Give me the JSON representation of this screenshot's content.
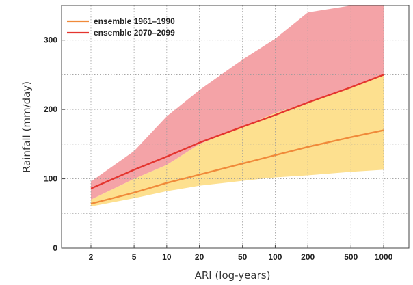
{
  "chart_data": {
    "type": "area",
    "x_scale": "log",
    "x": [
      2,
      5,
      10,
      20,
      50,
      100,
      200,
      500,
      1000
    ],
    "x_ticks": [
      "2",
      "5",
      "10",
      "20",
      "50",
      "100",
      "200",
      "500",
      "1000"
    ],
    "xlabel": "ARI (log-years)",
    "ylabel": "Rainfall (mm/day)",
    "ylim": [
      0,
      350
    ],
    "y_ticks": [
      0,
      100,
      200,
      300
    ],
    "grid": true,
    "legend_position": "top-left",
    "series": [
      {
        "name": "ensemble 1961–1990",
        "color": "#f08a3a",
        "band_color": "#fde08f",
        "values": [
          64,
          80,
          94,
          106,
          122,
          134,
          146,
          160,
          170
        ],
        "band_low": [
          60,
          72,
          82,
          90,
          97,
          102,
          105,
          110,
          113
        ],
        "band_high": [
          70,
          100,
          120,
          150,
          175,
          195,
          210,
          232,
          250
        ]
      },
      {
        "name": "ensemble 2070–2099",
        "color": "#e4352f",
        "band_color": "#f4a3a7",
        "values": [
          86,
          113,
          132,
          152,
          175,
          192,
          210,
          232,
          250
        ],
        "band_low": [
          70,
          100,
          120,
          150,
          175,
          195,
          210,
          232,
          250
        ],
        "band_high": [
          96,
          140,
          190,
          228,
          272,
          302,
          340,
          350,
          350
        ]
      }
    ]
  }
}
